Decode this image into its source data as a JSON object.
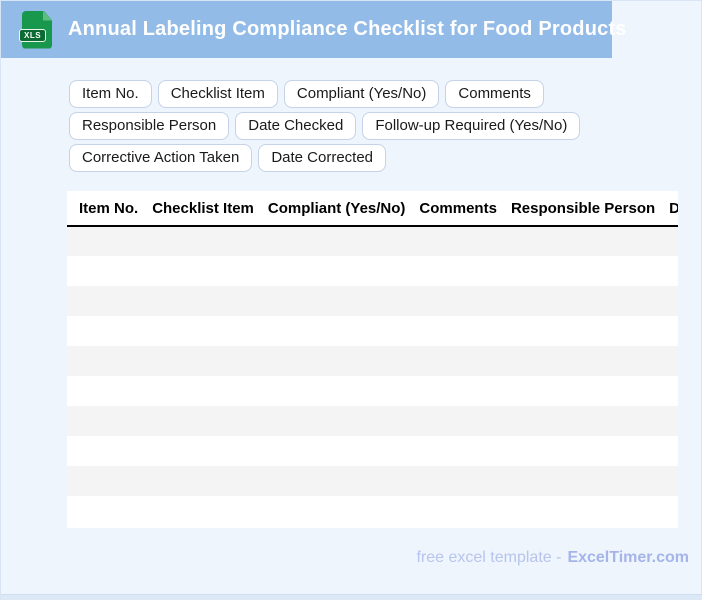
{
  "header": {
    "title": "Annual Labeling Compliance Checklist for Food Products",
    "file_icon_label": "XLS"
  },
  "chips": [
    "Item No.",
    "Checklist Item",
    "Compliant (Yes/No)",
    "Comments",
    "Responsible Person",
    "Date Checked",
    "Follow-up Required (Yes/No)",
    "Corrective Action Taken",
    "Date Corrected"
  ],
  "table": {
    "columns": [
      "Item No.",
      "Checklist Item",
      "Compliant (Yes/No)",
      "Comments",
      "Responsible Person",
      "Date Checked"
    ],
    "body_row_count": 10,
    "rows_are_empty": true
  },
  "footer": {
    "text": "free excel template -",
    "brand": "ExcelTimer.com"
  },
  "colors": {
    "header_bar": "#92bbe7",
    "page_background": "#eef5fd",
    "row_stripe": "#f4f4f4",
    "chip_border": "#c5d2e8",
    "icon_green": "#18984d",
    "icon_band_green": "#0c6b33",
    "footer_text": "#b7c4ee",
    "footer_brand": "#a5b4e9"
  }
}
